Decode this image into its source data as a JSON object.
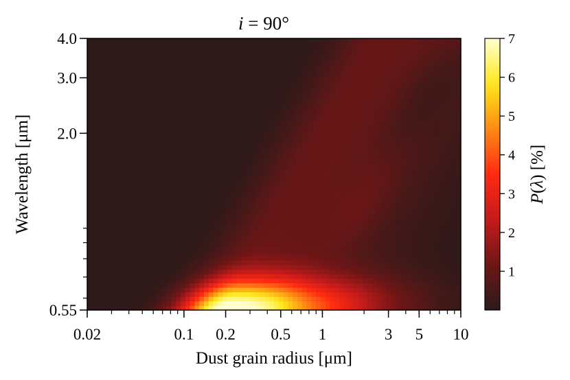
{
  "chart_data": {
    "type": "heatmap",
    "title": "i = 90°",
    "xlabel": "Dust grain radius [μm]",
    "ylabel": "Wavelength [μm]",
    "colorbar_label": "P(λ) [%]",
    "x_scale": "log",
    "y_scale": "log",
    "xlim": [
      0.02,
      10
    ],
    "ylim": [
      0.55,
      4.0
    ],
    "clim": [
      0,
      7
    ],
    "x_ticks": [
      {
        "value": 0.02,
        "label": "0.02"
      },
      {
        "value": 0.1,
        "label": "0.1"
      },
      {
        "value": 0.2,
        "label": "0.2"
      },
      {
        "value": 0.5,
        "label": "0.5"
      },
      {
        "value": 1,
        "label": "1"
      },
      {
        "value": 3,
        "label": "3"
      },
      {
        "value": 5,
        "label": "5"
      },
      {
        "value": 10,
        "label": "10"
      }
    ],
    "y_ticks": [
      {
        "value": 0.55,
        "label": "0.55"
      },
      {
        "value": 2.0,
        "label": "2.0"
      },
      {
        "value": 3.0,
        "label": "3.0"
      },
      {
        "value": 4.0,
        "label": "4.0"
      }
    ],
    "colorbar_ticks": [
      {
        "value": 1,
        "label": "1"
      },
      {
        "value": 2,
        "label": "2"
      },
      {
        "value": 3,
        "label": "3"
      },
      {
        "value": 4,
        "label": "4"
      },
      {
        "value": 5,
        "label": "5"
      },
      {
        "value": 6,
        "label": "6"
      },
      {
        "value": 7,
        "label": "7"
      }
    ],
    "colormap": [
      "#2b1a1a",
      "#6e1616",
      "#c41b1b",
      "#ff2a12",
      "#ff8a14",
      "#ffe81c",
      "#ffffd0"
    ],
    "peak": {
      "x": 0.2,
      "y": 0.55,
      "value": 7
    }
  }
}
